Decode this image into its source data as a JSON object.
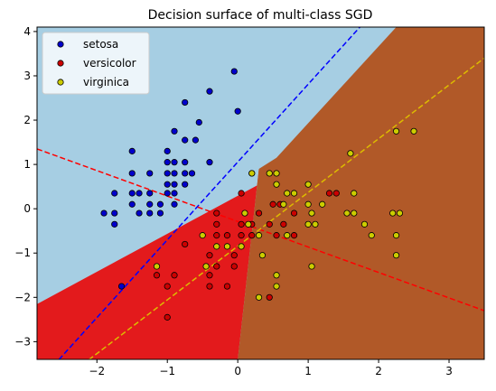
{
  "chart_data": {
    "type": "scatter",
    "title": "Decision surface of multi-class SGD",
    "xlabel": "",
    "ylabel": "",
    "xlim": [
      -2.85,
      3.5
    ],
    "ylim": [
      -3.4,
      4.1
    ],
    "xticks": [
      -2,
      -1,
      0,
      1,
      2,
      3
    ],
    "yticks": [
      -3,
      -2,
      -1,
      0,
      1,
      2,
      3,
      4
    ],
    "grid": false,
    "legend_position": "top-left",
    "regions": [
      {
        "class": "setosa",
        "color": "#a6cee3"
      },
      {
        "class": "versicolor",
        "color": "#e31a1c"
      },
      {
        "class": "virginica",
        "color": "#b15928"
      }
    ],
    "series": [
      {
        "name": "setosa",
        "color": "#0000cc",
        "points": [
          [
            -0.05,
            3.1
          ],
          [
            0.0,
            2.2
          ],
          [
            -0.4,
            2.65
          ],
          [
            -0.75,
            2.4
          ],
          [
            -0.55,
            1.95
          ],
          [
            -0.9,
            1.75
          ],
          [
            -0.6,
            1.55
          ],
          [
            -0.75,
            1.55
          ],
          [
            -0.4,
            1.05
          ],
          [
            -1.0,
            1.3
          ],
          [
            -0.9,
            1.05
          ],
          [
            -1.0,
            1.05
          ],
          [
            -0.75,
            1.05
          ],
          [
            -1.5,
            1.3
          ],
          [
            -1.5,
            0.8
          ],
          [
            -1.25,
            0.8
          ],
          [
            -1.0,
            0.8
          ],
          [
            -0.9,
            0.8
          ],
          [
            -0.75,
            0.8
          ],
          [
            -0.65,
            0.8
          ],
          [
            -1.0,
            0.55
          ],
          [
            -0.9,
            0.55
          ],
          [
            -0.75,
            0.55
          ],
          [
            -1.5,
            0.35
          ],
          [
            -1.4,
            0.35
          ],
          [
            -1.25,
            0.35
          ],
          [
            -1.0,
            0.35
          ],
          [
            -0.9,
            0.35
          ],
          [
            -1.75,
            0.35
          ],
          [
            -1.5,
            0.1
          ],
          [
            -1.25,
            0.1
          ],
          [
            -1.1,
            0.1
          ],
          [
            -0.9,
            0.1
          ],
          [
            -1.4,
            -0.1
          ],
          [
            -1.25,
            -0.1
          ],
          [
            -1.1,
            -0.1
          ],
          [
            -1.9,
            -0.1
          ],
          [
            -1.75,
            -0.1
          ],
          [
            -1.75,
            -0.35
          ],
          [
            -1.65,
            -1.75
          ]
        ]
      },
      {
        "name": "versicolor",
        "color": "#cc0000",
        "points": [
          [
            0.2,
            0.8
          ],
          [
            0.05,
            0.35
          ],
          [
            1.3,
            0.35
          ],
          [
            1.4,
            0.35
          ],
          [
            0.5,
            0.1
          ],
          [
            0.6,
            0.1
          ],
          [
            0.3,
            -0.1
          ],
          [
            0.8,
            -0.1
          ],
          [
            -0.3,
            -0.1
          ],
          [
            -0.3,
            -0.35
          ],
          [
            0.05,
            -0.35
          ],
          [
            0.2,
            -0.35
          ],
          [
            0.45,
            -0.35
          ],
          [
            0.65,
            -0.35
          ],
          [
            -0.3,
            -0.6
          ],
          [
            -0.15,
            -0.6
          ],
          [
            0.05,
            -0.6
          ],
          [
            0.2,
            -0.6
          ],
          [
            0.55,
            -0.6
          ],
          [
            0.8,
            -0.6
          ],
          [
            -0.75,
            -0.8
          ],
          [
            -0.4,
            -1.05
          ],
          [
            -0.05,
            -1.05
          ],
          [
            -0.3,
            -1.3
          ],
          [
            -0.05,
            -1.3
          ],
          [
            -0.4,
            -1.5
          ],
          [
            -0.9,
            -1.5
          ],
          [
            -0.15,
            -1.75
          ],
          [
            -0.4,
            -1.75
          ],
          [
            -1.0,
            -1.75
          ],
          [
            -1.15,
            -1.5
          ],
          [
            0.45,
            -2.0
          ],
          [
            -1.0,
            -2.45
          ]
        ]
      },
      {
        "name": "virginica",
        "color": "#cccc00",
        "points": [
          [
            0.2,
            0.8
          ],
          [
            0.45,
            0.8
          ],
          [
            0.55,
            0.8
          ],
          [
            0.55,
            0.55
          ],
          [
            0.7,
            0.35
          ],
          [
            0.8,
            0.35
          ],
          [
            1.0,
            0.55
          ],
          [
            0.65,
            0.1
          ],
          [
            1.0,
            0.1
          ],
          [
            1.2,
            0.1
          ],
          [
            1.6,
            1.25
          ],
          [
            1.65,
            0.35
          ],
          [
            2.25,
            1.75
          ],
          [
            2.5,
            1.75
          ],
          [
            1.05,
            -0.1
          ],
          [
            1.55,
            -0.1
          ],
          [
            1.65,
            -0.1
          ],
          [
            1.8,
            -0.35
          ],
          [
            2.2,
            -0.1
          ],
          [
            2.3,
            -0.1
          ],
          [
            1.0,
            -0.35
          ],
          [
            1.1,
            -0.35
          ],
          [
            0.7,
            -0.6
          ],
          [
            1.9,
            -0.6
          ],
          [
            2.25,
            -0.6
          ],
          [
            0.35,
            -1.05
          ],
          [
            0.55,
            -1.5
          ],
          [
            1.05,
            -1.3
          ],
          [
            2.25,
            -1.05
          ],
          [
            0.55,
            -1.75
          ],
          [
            0.1,
            -0.1
          ],
          [
            0.3,
            -0.6
          ],
          [
            0.05,
            -0.85
          ],
          [
            0.3,
            -2.0
          ],
          [
            -1.15,
            -1.3
          ],
          [
            -0.5,
            -0.6
          ],
          [
            -0.45,
            -1.3
          ],
          [
            -0.3,
            -0.85
          ],
          [
            -0.15,
            -0.85
          ],
          [
            0.15,
            -0.35
          ]
        ]
      }
    ],
    "hyperplanes": [
      {
        "class": "setosa",
        "color": "#0000ff",
        "line": [
          [
            -2.85,
            -3.95
          ],
          [
            3.5,
            7.2
          ]
        ]
      },
      {
        "class": "versicolor",
        "color": "#ff0000",
        "line": [
          [
            -2.85,
            1.35
          ],
          [
            3.5,
            -2.3
          ]
        ]
      },
      {
        "class": "virginica",
        "color": "#ddbb00",
        "line": [
          [
            -2.85,
            -4.3
          ],
          [
            3.5,
            3.4
          ]
        ]
      }
    ]
  }
}
